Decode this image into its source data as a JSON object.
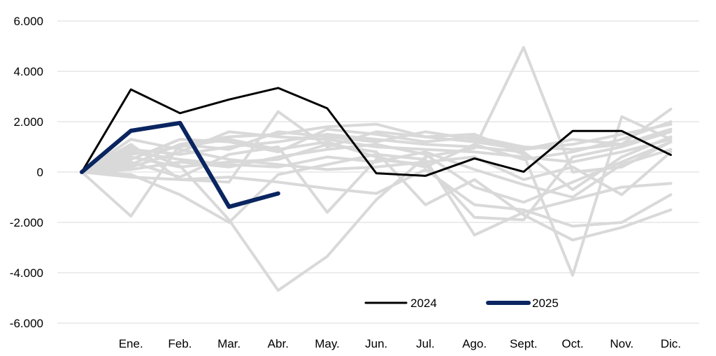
{
  "chart_data": {
    "type": "line",
    "categories": [
      "",
      "Ene.",
      "Feb.",
      "Mar.",
      "Abr.",
      "May.",
      "Jun.",
      "Jul.",
      "Ago.",
      "Sept.",
      "Oct.",
      "Nov.",
      "Dic."
    ],
    "ylim": [
      -6000,
      6000
    ],
    "yticks": [
      6000,
      4000,
      2000,
      0,
      -2000,
      -4000,
      -6000
    ],
    "ytick_labels": [
      "6.000",
      "4.000",
      "2.000",
      "0",
      "-2.000",
      "-4.000",
      "-6.000"
    ],
    "grid": true,
    "legend_position": "bottom-right",
    "highlight_series": [
      {
        "name": "2024",
        "color": "#000000",
        "values": [
          0,
          3280,
          2340,
          2880,
          3340,
          2530,
          -50,
          -150,
          540,
          10,
          1630,
          1630,
          680
        ]
      },
      {
        "name": "2025",
        "color": "#0a2560",
        "values": [
          0,
          1640,
          1950,
          -1380,
          -850,
          null,
          null,
          null,
          null,
          null,
          null,
          null,
          null
        ]
      }
    ],
    "background_series_color": "#d9d9d9",
    "background_series": [
      [
        0,
        -1750,
        1100,
        1400,
        1500,
        1800,
        1900,
        1400,
        1200,
        900,
        1100,
        1500,
        1900
      ],
      [
        0,
        1000,
        250,
        -1900,
        -4700,
        -3350,
        -1100,
        600,
        950,
        4950,
        0,
        200,
        1200
      ],
      [
        0,
        1100,
        -300,
        -400,
        2400,
        1000,
        1600,
        1400,
        1500,
        700,
        -4100,
        2200,
        1300
      ],
      [
        0,
        500,
        1300,
        1200,
        800,
        1700,
        1500,
        1200,
        1400,
        1000,
        900,
        1100,
        2500
      ],
      [
        0,
        -200,
        -300,
        -200,
        -400,
        -650,
        -850,
        100,
        -1300,
        -1500,
        -2150,
        -2000,
        -900
      ],
      [
        0,
        200,
        800,
        1600,
        1400,
        1300,
        1000,
        900,
        800,
        600,
        400,
        800,
        1300
      ],
      [
        0,
        600,
        200,
        400,
        500,
        1100,
        800,
        -1300,
        -300,
        -1700,
        -2700,
        -2200,
        -1500
      ],
      [
        0,
        300,
        1100,
        900,
        1600,
        1400,
        1200,
        1600,
        1300,
        900,
        1300,
        1100,
        1700
      ],
      [
        0,
        -100,
        -900,
        -2000,
        -100,
        300,
        700,
        500,
        -2500,
        -1600,
        -1100,
        -600,
        -450
      ],
      [
        0,
        800,
        500,
        300,
        200,
        600,
        400,
        800,
        100,
        -500,
        -1000,
        300,
        900
      ],
      [
        0,
        900,
        700,
        1000,
        1200,
        1500,
        1300,
        1100,
        1000,
        800,
        -700,
        600,
        1400
      ],
      [
        0,
        400,
        -200,
        700,
        1000,
        -1600,
        500,
        300,
        -1800,
        -1900,
        600,
        1000,
        1600
      ],
      [
        0,
        1300,
        900,
        500,
        300,
        100,
        200,
        400,
        600,
        -300,
        200,
        -900,
        800
      ],
      [
        0,
        100,
        400,
        200,
        600,
        900,
        1100,
        700,
        -600,
        -1200,
        -400,
        400,
        1200
      ],
      [
        0,
        700,
        1000,
        1300,
        900,
        1200,
        600,
        200,
        1100,
        500,
        800,
        1300,
        2000
      ]
    ]
  }
}
